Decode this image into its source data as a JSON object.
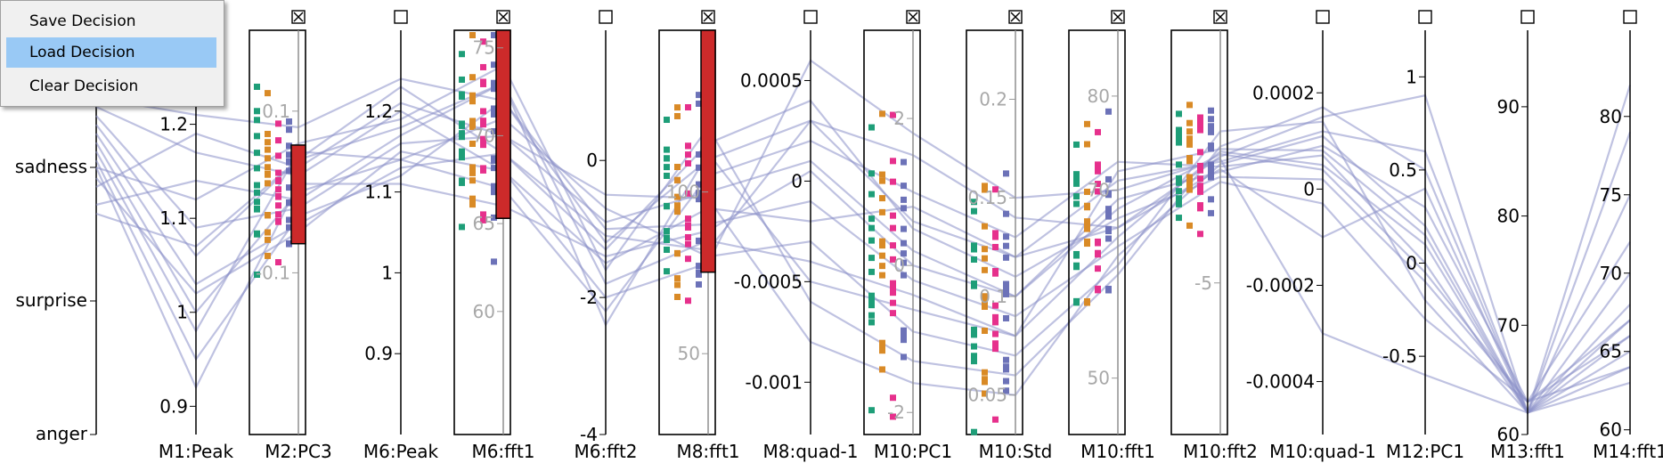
{
  "menu": {
    "items": [
      {
        "label": "Save Decision",
        "selected": false
      },
      {
        "label": "Load Decision",
        "selected": true
      },
      {
        "label": "Clear Decision",
        "selected": false
      }
    ],
    "highlight_color": "#99c9f5"
  },
  "chart_data": {
    "type": "parallel-coordinates",
    "title": "",
    "grid": false,
    "line_color": "#8a8fc8",
    "brush_color": "#cc2a2a",
    "class_colors": {
      "neutral": "#1e9e78",
      "happy": "#d98a26",
      "angry": "#e6308c",
      "sad": "#6c72b8"
    },
    "axes": [
      {
        "label": "M1:Peak",
        "checked": false,
        "ticks": [
          {
            "v": 0.9,
            "t": "0.9"
          },
          {
            "v": 1.0,
            "t": "1"
          },
          {
            "v": 1.1,
            "t": "1.1"
          },
          {
            "v": 1.2,
            "t": "1.2"
          }
        ],
        "range": [
          0.87,
          1.3
        ]
      },
      {
        "label": "M2:PC3",
        "checked": true,
        "ticks": [
          {
            "v": -0.1,
            "t": "-0.1"
          },
          {
            "v": 0.1,
            "t": "0.1"
          }
        ],
        "range": [
          -0.3,
          0.2
        ],
        "brush": [
          -0.064,
          0.058
        ]
      },
      {
        "label": "M6:Peak",
        "checked": false,
        "ticks": [
          {
            "v": 0.9,
            "t": "0.9"
          },
          {
            "v": 1.0,
            "t": "1"
          },
          {
            "v": 1.1,
            "t": "1.1"
          },
          {
            "v": 1.2,
            "t": "1.2"
          }
        ],
        "range": [
          0.8,
          1.3
        ]
      },
      {
        "label": "M6:fft1",
        "checked": true,
        "ticks": [
          {
            "v": 60,
            "t": "60"
          },
          {
            "v": 65,
            "t": "65"
          },
          {
            "v": 70,
            "t": "70"
          },
          {
            "v": 75,
            "t": "75"
          }
        ],
        "range": [
          53,
          76
        ],
        "brush": [
          65.3,
          76
        ]
      },
      {
        "label": "M6:fft2",
        "checked": false,
        "ticks": [
          {
            "v": -4,
            "t": "-4"
          },
          {
            "v": -2,
            "t": "-2"
          },
          {
            "v": 0,
            "t": "0"
          }
        ],
        "range": [
          -4,
          1.9
        ]
      },
      {
        "label": "M8:fft1",
        "checked": true,
        "ticks": [
          {
            "v": 50,
            "t": "50"
          },
          {
            "v": 100,
            "t": "100"
          }
        ],
        "range": [
          25,
          150
        ],
        "brush": [
          75.2,
          150
        ]
      },
      {
        "label": "M8:quad-1",
        "checked": false,
        "ticks": [
          {
            "v": -0.001,
            "t": "-0.001"
          },
          {
            "v": -0.0005,
            "t": "-0.0005"
          },
          {
            "v": 0,
            "t": "0"
          },
          {
            "v": 0.0005,
            "t": "0.0005"
          }
        ],
        "range": [
          -0.00126,
          0.00075
        ]
      },
      {
        "label": "M10:PC1",
        "checked": true,
        "ticks": [
          {
            "v": -2,
            "t": "-2"
          },
          {
            "v": 0,
            "t": "0"
          },
          {
            "v": 2,
            "t": "2"
          }
        ],
        "range": [
          -2.3,
          3.2
        ]
      },
      {
        "label": "M10:Std",
        "checked": true,
        "ticks": [
          {
            "v": 0.05,
            "t": "0.05"
          },
          {
            "v": 0.1,
            "t": "0.1"
          },
          {
            "v": 0.15,
            "t": "0.15"
          },
          {
            "v": 0.2,
            "t": "0.2"
          }
        ],
        "range": [
          0.03,
          0.235
        ]
      },
      {
        "label": "M10:fft1",
        "checked": true,
        "ticks": [
          {
            "v": 50,
            "t": "50"
          },
          {
            "v": 70,
            "t": "70"
          },
          {
            "v": 80,
            "t": "80"
          }
        ],
        "range": [
          44,
          87
        ]
      },
      {
        "label": "M10:fft2",
        "checked": true,
        "ticks": [
          {
            "v": -5,
            "t": "-5"
          }
        ],
        "range": [
          -8,
          0
        ]
      },
      {
        "label": "M10:quad-1",
        "checked": false,
        "ticks": [
          {
            "v": -0.0004,
            "t": "-0.0004"
          },
          {
            "v": -0.0002,
            "t": "-0.0002"
          },
          {
            "v": 0,
            "t": "0"
          },
          {
            "v": 0.0002,
            "t": "0.0002"
          }
        ],
        "range": [
          -0.00051,
          0.00033
        ]
      },
      {
        "label": "M12:PC1",
        "checked": false,
        "ticks": [
          {
            "v": -0.5,
            "t": "-0.5"
          },
          {
            "v": 0,
            "t": "0"
          },
          {
            "v": 0.5,
            "t": "0.5"
          },
          {
            "v": 1,
            "t": "1"
          }
        ],
        "range": [
          -0.92,
          1.25
        ]
      },
      {
        "label": "M13:fft1",
        "checked": false,
        "ticks": [
          {
            "v": 60,
            "t": "60"
          },
          {
            "v": 70,
            "t": "70"
          },
          {
            "v": 80,
            "t": "80"
          },
          {
            "v": 90,
            "t": "90"
          }
        ],
        "range": [
          60,
          97
        ]
      },
      {
        "label": "M14:fft1",
        "checked": false,
        "ticks": [
          {
            "v": 60,
            "t": "60"
          },
          {
            "v": 65,
            "t": "65"
          },
          {
            "v": 70,
            "t": "70"
          },
          {
            "v": 75,
            "t": "75"
          },
          {
            "v": 80,
            "t": "80"
          }
        ],
        "range": [
          59.7,
          85.5
        ]
      }
    ],
    "class_axis": {
      "categories": [
        "anger",
        "surprise",
        "sadness"
      ]
    },
    "polylines": [
      [
        1.21,
        0.08,
        1.24,
        72,
        -1.2,
        110,
        0.0003,
        1.5,
        0.14,
        66,
        -2.5,
        0.00015,
        0.9,
        62,
        79
      ],
      [
        1.17,
        0.02,
        1.2,
        68,
        -1.5,
        95,
        -0.0002,
        0.8,
        0.12,
        71,
        -2.6,
        0.00012,
        0.6,
        62,
        70
      ],
      [
        1.09,
        -0.02,
        1.16,
        70,
        -0.9,
        100,
        0.0001,
        0.2,
        0.1,
        69,
        -2.8,
        9e-05,
        0.3,
        63,
        67
      ],
      [
        1.06,
        0.04,
        1.18,
        73,
        -1.8,
        85,
        -0.0004,
        -0.4,
        0.08,
        65,
        -2.4,
        5e-05,
        0.1,
        62,
        64
      ],
      [
        1.03,
        -0.04,
        1.13,
        69,
        -1.3,
        115,
        0.0004,
        0.5,
        0.11,
        67,
        -2.9,
        2e-05,
        -0.1,
        63,
        66
      ],
      [
        1.0,
        0.0,
        1.14,
        71,
        -0.7,
        80,
        -0.0003,
        -0.9,
        0.07,
        62,
        -2.0,
        0.00014,
        -0.2,
        62,
        65
      ],
      [
        0.98,
        0.05,
        1.14,
        67,
        -2.2,
        105,
        0.0002,
        1.0,
        0.13,
        73,
        -2.7,
        7e-05,
        0.0,
        62,
        68
      ],
      [
        0.95,
        -0.03,
        1.12,
        72,
        -1.0,
        90,
        -0.0001,
        -0.2,
        0.09,
        64,
        -3.0,
        -3e-05,
        -0.3,
        63,
        72
      ],
      [
        1.12,
        0.06,
        1.19,
        74,
        -1.6,
        120,
        -0.0006,
        -1.3,
        0.06,
        61,
        -2.3,
        0.00017,
        0.5,
        62,
        82
      ],
      [
        1.02,
        -0.05,
        1.15,
        68,
        -2.0,
        78,
        0.0006,
        1.8,
        0.15,
        70,
        -2.55,
        -0.0003,
        -0.6,
        62,
        63
      ],
      [
        1.19,
        0.03,
        1.21,
        70,
        -0.5,
        98,
        -0.0008,
        -1.6,
        0.05,
        63,
        -2.65,
        0.00011,
        0.2,
        62,
        66
      ],
      [
        0.92,
        0.01,
        1.11,
        66,
        -1.4,
        88,
        5e-05,
        0.0,
        0.1,
        68,
        -2.45,
        4e-05,
        -0.05,
        63,
        64
      ],
      [
        1.14,
        -0.01,
        1.17,
        73,
        -2.4,
        112,
        -0.0005,
        -0.6,
        0.08,
        72,
        -2.35,
        8e-05,
        0.15,
        62,
        75
      ],
      [
        1.07,
        0.04,
        1.23,
        69,
        -1.1,
        82,
        0.0003,
        0.6,
        0.12,
        66,
        -2.75,
        -0.0001,
        0.4,
        62,
        67
      ]
    ]
  }
}
